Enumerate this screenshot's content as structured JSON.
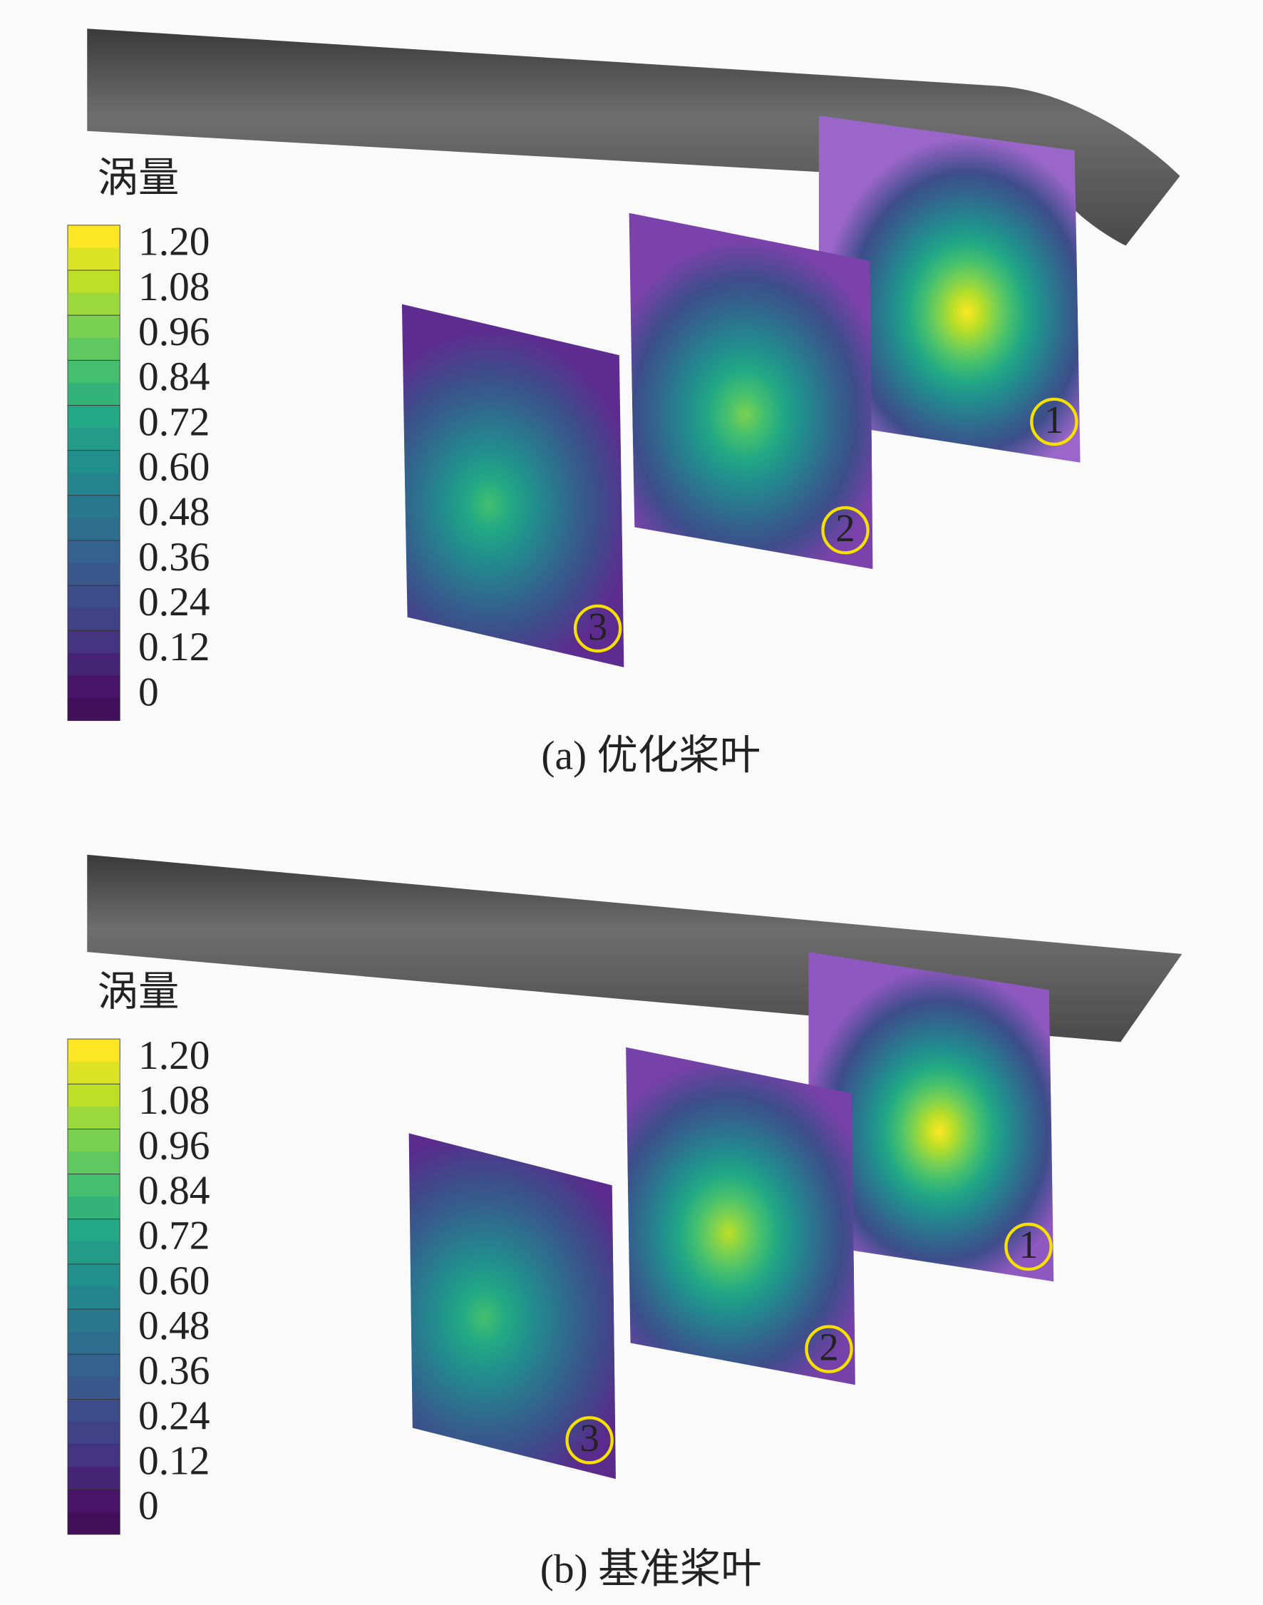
{
  "panels": [
    {
      "legend_title": "涡量",
      "legend_labels": [
        "1.20",
        "1.08",
        "0.96",
        "0.84",
        "0.72",
        "0.60",
        "0.48",
        "0.36",
        "0.24",
        "0.12",
        "0"
      ],
      "markers": [
        "1",
        "2",
        "3"
      ],
      "caption": "(a) 优化桨叶"
    },
    {
      "legend_title": "涡量",
      "legend_labels": [
        "1.20",
        "1.08",
        "0.96",
        "0.84",
        "0.72",
        "0.60",
        "0.48",
        "0.36",
        "0.24",
        "0.12",
        "0"
      ],
      "markers": [
        "1",
        "2",
        "3"
      ],
      "caption": "(b) 基准桨叶"
    }
  ]
}
